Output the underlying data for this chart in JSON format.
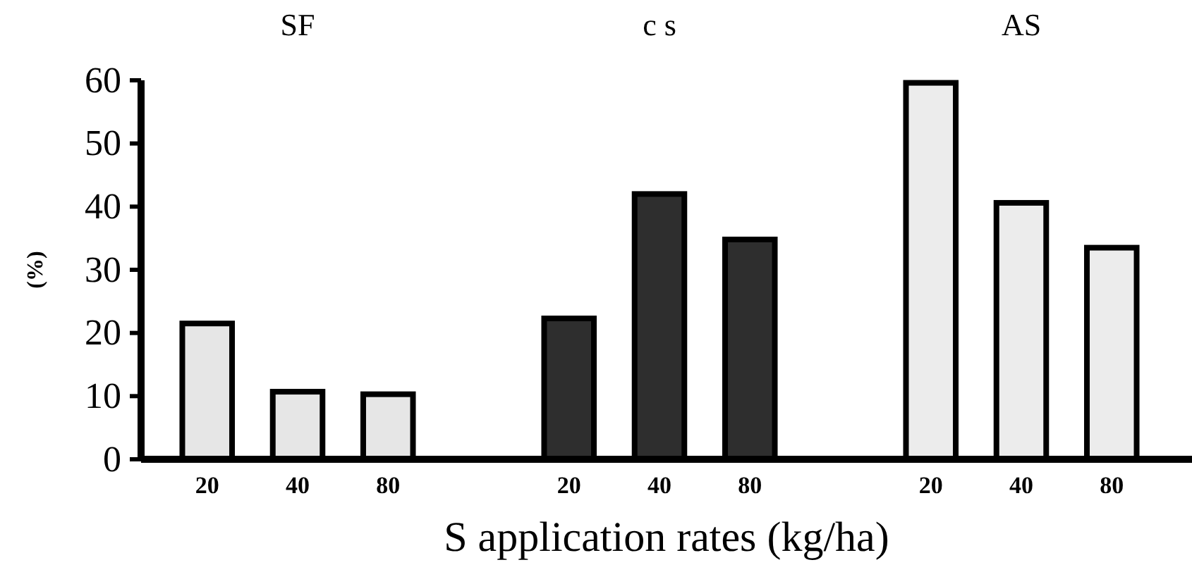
{
  "chart_data": {
    "type": "bar",
    "xlabel": "S application rates (kg/ha)",
    "ylabel": "(%)",
    "categories": [
      "20",
      "40",
      "80",
      null,
      "20",
      "40",
      "80",
      null,
      "20",
      "40",
      "80"
    ],
    "values": [
      21.5,
      10.7,
      10.3,
      null,
      22.3,
      42,
      34.8,
      null,
      59.6,
      40.6,
      33.5
    ],
    "colors": [
      "#e6e6e6",
      "#e6e6e6",
      "#e6e6e6",
      null,
      "#2e2e2e",
      "#2e2e2e",
      "#2e2e2e",
      null,
      "#ececec",
      "#ececec",
      "#ececec"
    ],
    "ylim": [
      0,
      60
    ],
    "yticks": [
      0,
      10,
      20,
      30,
      40,
      50,
      60
    ],
    "grid": false,
    "annotations": [
      "SF",
      "c s",
      "AS"
    ]
  }
}
